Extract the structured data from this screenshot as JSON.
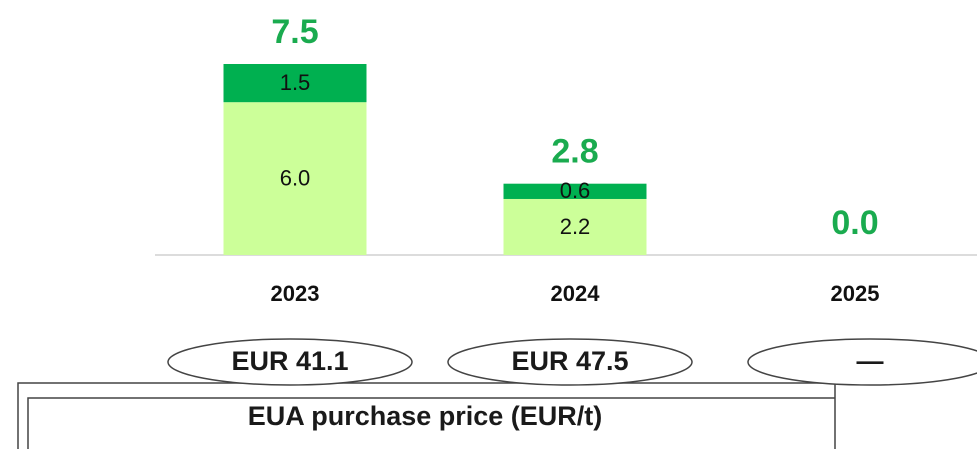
{
  "chart_data": {
    "type": "bar",
    "categories": [
      "2023",
      "2024",
      "2025"
    ],
    "series": [
      {
        "color": "#ccff99",
        "values": [
          6.0,
          2.2,
          0
        ],
        "value_labels": [
          "6.0",
          "2.2",
          null
        ]
      },
      {
        "color": "#00b050",
        "values": [
          1.5,
          0.6,
          0
        ],
        "value_labels": [
          "1.5",
          "0.6",
          null
        ]
      }
    ],
    "totals": {
      "color": "#1aab4f",
      "values": [
        7.5,
        2.8,
        0
      ],
      "value_labels": [
        "7.5",
        "2.8",
        "0.0"
      ]
    },
    "price_labels": [
      "EUR 41.1",
      "EUR 47.5",
      "—"
    ],
    "price_title": "EUA purchase price (EUR/t)"
  }
}
